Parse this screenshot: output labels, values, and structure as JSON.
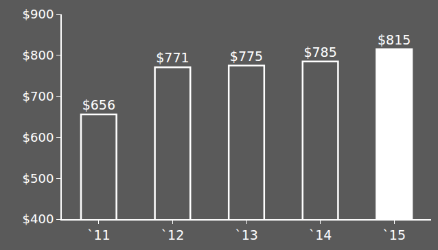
{
  "chart_data": {
    "type": "bar",
    "categories": [
      "`11",
      "`12",
      "`13",
      "`14",
      "`15"
    ],
    "values": [
      656,
      771,
      775,
      785,
      815
    ],
    "value_labels": [
      "$656",
      "$771",
      "$775",
      "$785",
      "$815"
    ],
    "data_labels": true,
    "colors": [
      "#5a5a5a",
      "#5a5a5a",
      "#5a5a5a",
      "#5a5a5a",
      "#ffffff"
    ],
    "ylim": [
      400,
      900
    ],
    "yticks": [
      {
        "value": 400,
        "label": "$400"
      },
      {
        "value": 500,
        "label": "$500"
      },
      {
        "value": 600,
        "label": "$600"
      },
      {
        "value": 700,
        "label": "$700"
      },
      {
        "value": 800,
        "label": "$800"
      },
      {
        "value": 900,
        "label": "$900"
      }
    ],
    "grid": false
  }
}
